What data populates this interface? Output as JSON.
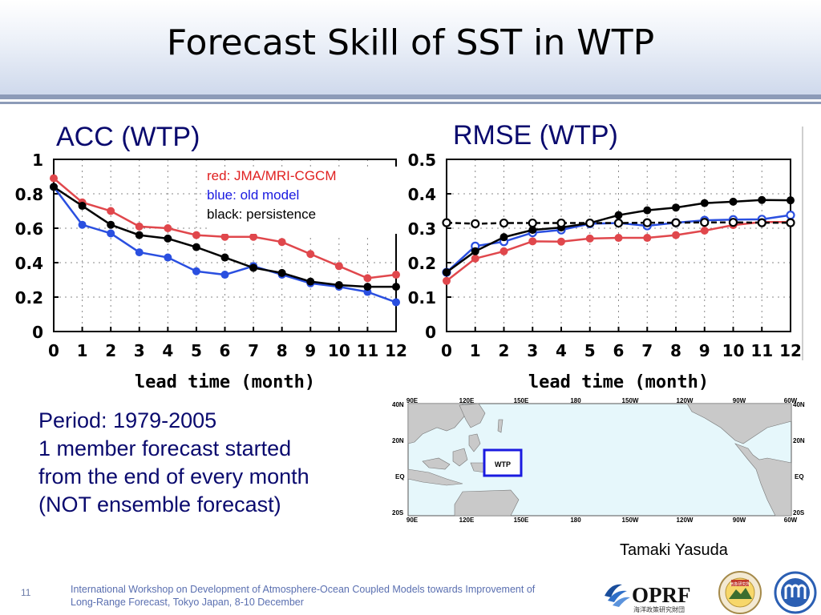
{
  "slide": {
    "title": "Forecast Skill of SST in WTP",
    "acc_label": "ACC (WTP)",
    "rmse_label": "RMSE (WTP)",
    "info_lines": [
      "Period: 1979-2005",
      "1 member forecast started",
      "from the end of every month",
      "(NOT ensemble forecast)"
    ],
    "author": "Tamaki Yasuda",
    "page_number": "11",
    "footer_lines": [
      "International Workshop on Development of Atmosphere-Ocean Coupled Models towards Improvement of",
      "Long-Range Forecast, Tokyo Japan, 8-10 December"
    ],
    "logos": {
      "oprf": "OPRF",
      "oprf_sub": "海洋政策研究財団",
      "mri_stamp": "気象研究所"
    }
  },
  "legend": {
    "red": "red: JMA/MRI-CGCM",
    "blue": "blue: old model",
    "black": "black: persistence"
  },
  "colors": {
    "red": "#e0474c",
    "blue": "#2a4fe0",
    "black": "#000000",
    "label_navy": "#0a0a6e",
    "map_box": "#1a1ae0"
  },
  "chart_data": [
    {
      "type": "line",
      "xlabel": "lead time (month)",
      "x": [
        0,
        1,
        2,
        3,
        4,
        5,
        6,
        7,
        8,
        9,
        10,
        11,
        12
      ],
      "xticks": [
        "0",
        "1",
        "2",
        "3",
        "4",
        "5",
        "6",
        "7",
        "8",
        "9",
        "10",
        "11",
        "12"
      ],
      "yticks": [
        "0",
        "0.2",
        "0.4",
        "0.6",
        "0.8",
        "1"
      ],
      "ylim": [
        0,
        1
      ],
      "grid": true,
      "series": [
        {
          "name": "red: JMA/MRI-CGCM",
          "color": "red",
          "marker": "filled",
          "values": [
            0.89,
            0.75,
            0.7,
            0.61,
            0.6,
            0.56,
            0.55,
            0.55,
            0.52,
            0.45,
            0.38,
            0.31,
            0.33
          ]
        },
        {
          "name": "blue: old model",
          "color": "blue",
          "marker": "filled",
          "values": [
            0.84,
            0.62,
            0.57,
            0.46,
            0.43,
            0.35,
            0.33,
            0.38,
            0.33,
            0.28,
            0.26,
            0.23,
            0.17
          ]
        },
        {
          "name": "black: persistence",
          "color": "black",
          "marker": "filled",
          "values": [
            0.84,
            0.73,
            0.62,
            0.56,
            0.54,
            0.49,
            0.43,
            0.37,
            0.34,
            0.29,
            0.27,
            0.26,
            0.26
          ]
        }
      ]
    },
    {
      "type": "line",
      "xlabel": "lead time (month)",
      "x": [
        0,
        1,
        2,
        3,
        4,
        5,
        6,
        7,
        8,
        9,
        10,
        11,
        12
      ],
      "xticks": [
        "0",
        "1",
        "2",
        "3",
        "4",
        "5",
        "6",
        "7",
        "8",
        "9",
        "10",
        "11",
        "12"
      ],
      "yticks": [
        "0",
        "0.1",
        "0.2",
        "0.3",
        "0.4",
        "0.5"
      ],
      "ylim": [
        0,
        0.5
      ],
      "grid": true,
      "series": [
        {
          "name": "red: JMA/MRI-CGCM",
          "color": "red",
          "marker": "filled",
          "values": [
            0.147,
            0.212,
            0.233,
            0.262,
            0.261,
            0.27,
            0.272,
            0.272,
            0.28,
            0.293,
            0.309,
            0.318,
            0.318
          ]
        },
        {
          "name": "blue: old model",
          "color": "blue",
          "marker": "open",
          "values": [
            0.172,
            0.248,
            0.261,
            0.287,
            0.295,
            0.313,
            0.315,
            0.307,
            0.316,
            0.323,
            0.325,
            0.326,
            0.338
          ]
        },
        {
          "name": "black: persistence",
          "color": "black",
          "marker": "filled",
          "values": [
            0.172,
            0.233,
            0.274,
            0.295,
            0.302,
            0.315,
            0.338,
            0.352,
            0.36,
            0.373,
            0.377,
            0.382,
            0.381
          ]
        },
        {
          "name": "black: persistence",
          "color": "black",
          "marker": "open",
          "dashed": true,
          "values": [
            0.316,
            0.313,
            0.315,
            0.315,
            0.315,
            0.315,
            0.315,
            0.316,
            0.316,
            0.317,
            0.317,
            0.316,
            0.316
          ]
        }
      ]
    }
  ],
  "map": {
    "lon_labels": [
      "90E",
      "120E",
      "150E",
      "180",
      "150W",
      "120W",
      "90W",
      "60W"
    ],
    "lat_labels": [
      "40N",
      "20N",
      "EQ",
      "20S"
    ],
    "region_label": "WTP"
  }
}
